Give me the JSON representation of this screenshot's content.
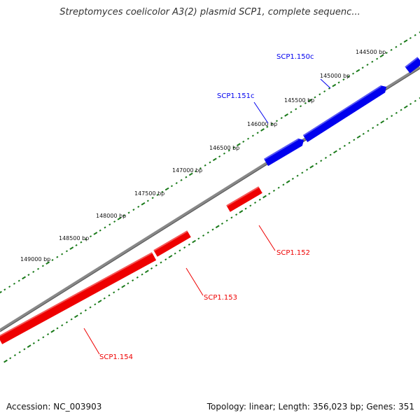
{
  "header": {
    "title": "Streptomyces coelicolor A3(2) plasmid SCP1, complete sequenc..."
  },
  "footer": {
    "accession_label": "Accession:",
    "accession_value": "NC_003903",
    "topology_text": "Topology: linear; Length: 356,023 bp; Genes: 351"
  },
  "colors": {
    "forward_gene": "#0000ee",
    "reverse_gene": "#ee0000",
    "backbone": "#808080",
    "tick": "#1a7a1a"
  },
  "ticks": [
    {
      "label": "144500 bp"
    },
    {
      "label": "145000 bp"
    },
    {
      "label": "145500 bp"
    },
    {
      "label": "146000 bp"
    },
    {
      "label": "146500 bp"
    },
    {
      "label": "147000 bp"
    },
    {
      "label": "147500 bp"
    },
    {
      "label": "148000 bp"
    },
    {
      "label": "148500 bp"
    },
    {
      "label": "149000 bp"
    }
  ],
  "genes": [
    {
      "name": "SCP1.150c",
      "strand": "forward"
    },
    {
      "name": "SCP1.151c",
      "strand": "forward"
    },
    {
      "name": "SCP1.152",
      "strand": "reverse"
    },
    {
      "name": "SCP1.153",
      "strand": "reverse"
    },
    {
      "name": "SCP1.154",
      "strand": "reverse"
    }
  ]
}
